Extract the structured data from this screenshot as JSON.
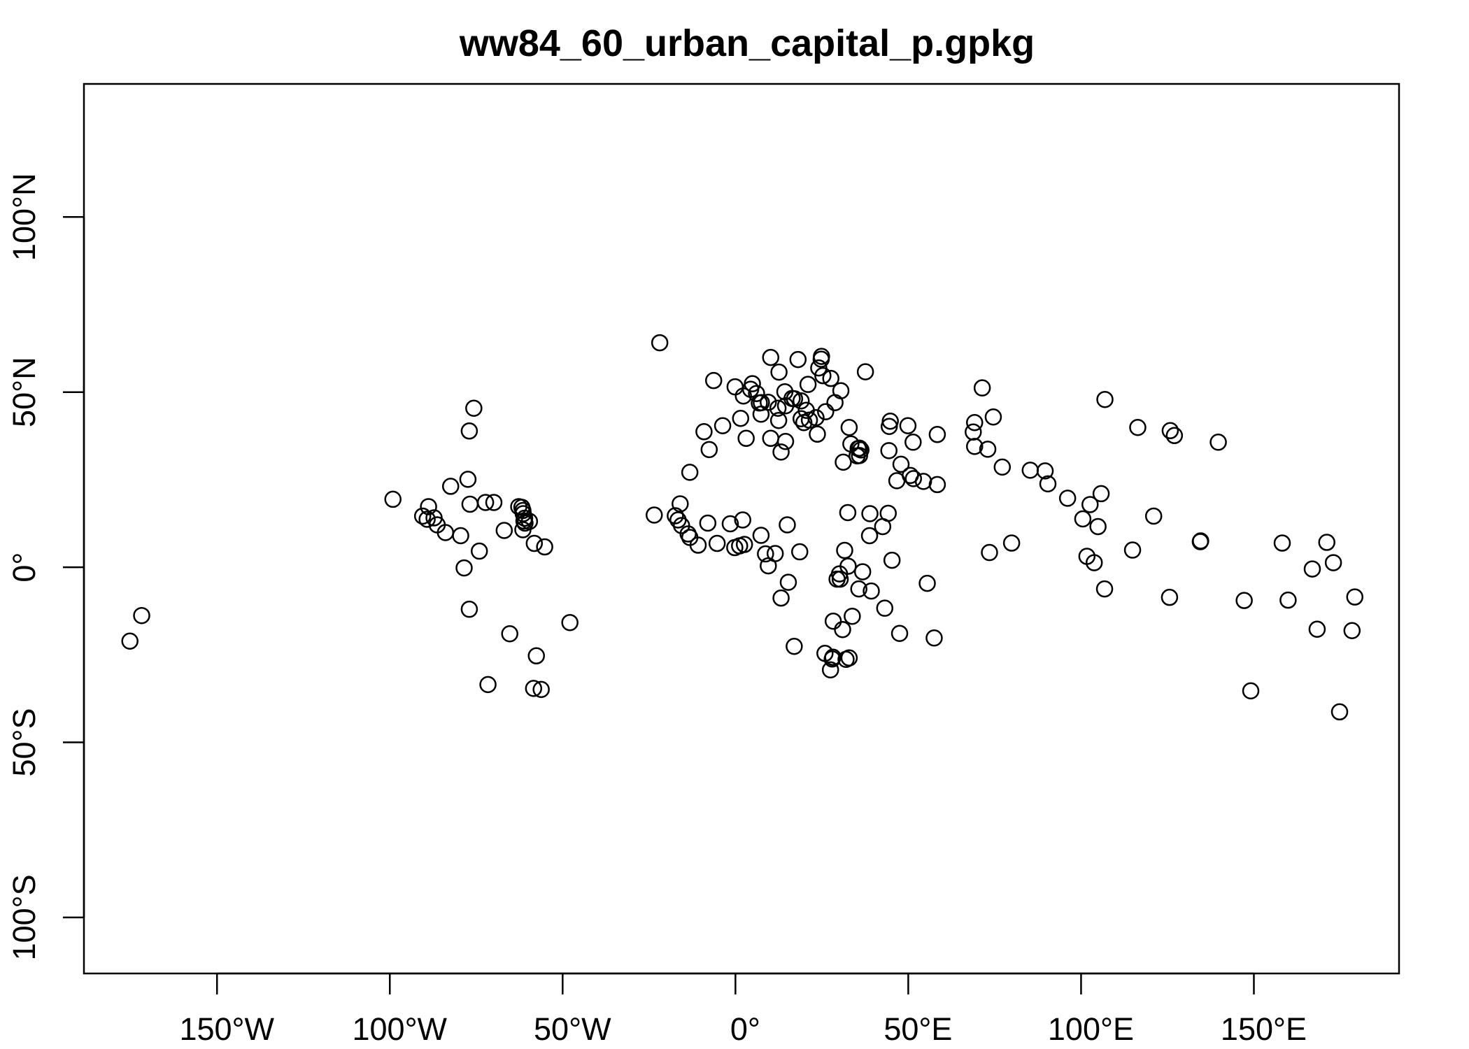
{
  "chart_data": {
    "type": "scatter",
    "title": "ww84_60_urban_capital_p.gpkg",
    "xlabel": "",
    "ylabel": "",
    "xlim": [
      -188.5,
      192
    ],
    "ylim": [
      -116,
      138
    ],
    "grid": false,
    "marker": "open-circle",
    "color": "#000000",
    "x_ticks": [
      {
        "value": -150,
        "label": "150°W"
      },
      {
        "value": -100,
        "label": "100°W"
      },
      {
        "value": -50,
        "label": "50°W"
      },
      {
        "value": 0,
        "label": "0°"
      },
      {
        "value": 50,
        "label": "50°E"
      },
      {
        "value": 100,
        "label": "100°E"
      },
      {
        "value": 150,
        "label": "150°E"
      }
    ],
    "y_ticks": [
      {
        "value": 100,
        "label": "100°N"
      },
      {
        "value": 50,
        "label": "50°N"
      },
      {
        "value": 0,
        "label": "0°"
      },
      {
        "value": -50,
        "label": "50°S"
      },
      {
        "value": -100,
        "label": "100°S"
      }
    ],
    "points": [
      [
        -175.2,
        -21.1
      ],
      [
        -171.8,
        -13.8
      ],
      [
        -99.1,
        19.4
      ],
      [
        -90.5,
        14.6
      ],
      [
        -89.2,
        13.7
      ],
      [
        -88.8,
        17.3
      ],
      [
        -87.2,
        14.1
      ],
      [
        -86.3,
        12.1
      ],
      [
        -83.9,
        9.9
      ],
      [
        -82.4,
        23.1
      ],
      [
        -79.5,
        9.0
      ],
      [
        -78.5,
        -0.2
      ],
      [
        -77.4,
        25.1
      ],
      [
        -77.0,
        38.9
      ],
      [
        -77.0,
        -12.0
      ],
      [
        -76.8,
        18.0
      ],
      [
        -75.7,
        45.4
      ],
      [
        -74.1,
        4.6
      ],
      [
        -72.3,
        18.5
      ],
      [
        -71.6,
        -33.5
      ],
      [
        -69.9,
        18.5
      ],
      [
        -66.9,
        10.5
      ],
      [
        -65.3,
        -19.0
      ],
      [
        -62.7,
        17.3
      ],
      [
        -61.8,
        17.1
      ],
      [
        -61.5,
        16.2
      ],
      [
        -61.4,
        15.3
      ],
      [
        -61.2,
        13.2
      ],
      [
        -61.5,
        10.7
      ],
      [
        -61.0,
        14.0
      ],
      [
        -60.9,
        12.6
      ],
      [
        -59.6,
        13.1
      ],
      [
        -58.2,
        6.8
      ],
      [
        -57.6,
        -25.3
      ],
      [
        -58.4,
        -34.6
      ],
      [
        -56.2,
        -34.9
      ],
      [
        -55.2,
        5.8
      ],
      [
        -47.9,
        -15.8
      ],
      [
        -21.9,
        64.1
      ],
      [
        -23.5,
        14.9
      ],
      [
        -17.4,
        14.7
      ],
      [
        -16.6,
        13.5
      ],
      [
        -16.0,
        18.1
      ],
      [
        -15.6,
        11.9
      ],
      [
        -13.7,
        9.5
      ],
      [
        -13.2,
        27.1
      ],
      [
        -13.2,
        8.5
      ],
      [
        -10.8,
        6.3
      ],
      [
        -9.1,
        38.7
      ],
      [
        -8.0,
        12.6
      ],
      [
        -7.6,
        33.6
      ],
      [
        -6.3,
        53.3
      ],
      [
        -5.3,
        6.8
      ],
      [
        -3.7,
        40.4
      ],
      [
        -1.5,
        12.4
      ],
      [
        -0.1,
        51.5
      ],
      [
        -0.2,
        5.6
      ],
      [
        1.2,
        6.1
      ],
      [
        1.5,
        42.5
      ],
      [
        2.1,
        13.5
      ],
      [
        2.3,
        48.9
      ],
      [
        2.6,
        6.5
      ],
      [
        3.1,
        36.8
      ],
      [
        4.4,
        50.8
      ],
      [
        4.9,
        52.4
      ],
      [
        6.1,
        49.6
      ],
      [
        6.9,
        46.9
      ],
      [
        7.4,
        43.7
      ],
      [
        7.4,
        9.1
      ],
      [
        7.5,
        47.0
      ],
      [
        8.7,
        3.8
      ],
      [
        9.5,
        0.4
      ],
      [
        9.5,
        47.1
      ],
      [
        10.2,
        59.9
      ],
      [
        10.2,
        36.8
      ],
      [
        11.5,
        3.9
      ],
      [
        12.3,
        45.4
      ],
      [
        12.5,
        41.9
      ],
      [
        12.6,
        55.7
      ],
      [
        13.2,
        32.9
      ],
      [
        13.2,
        -8.8
      ],
      [
        14.3,
        50.1
      ],
      [
        14.5,
        46.1
      ],
      [
        15.0,
        12.1
      ],
      [
        14.5,
        35.9
      ],
      [
        15.3,
        -4.3
      ],
      [
        16.4,
        48.2
      ],
      [
        17.1,
        48.1
      ],
      [
        17.0,
        -22.6
      ],
      [
        18.1,
        59.3
      ],
      [
        18.6,
        4.4
      ],
      [
        19.0,
        47.5
      ],
      [
        19.0,
        42.4
      ],
      [
        19.8,
        41.3
      ],
      [
        20.5,
        44.8
      ],
      [
        21.0,
        52.2
      ],
      [
        21.4,
        42.0
      ],
      [
        23.3,
        42.7
      ],
      [
        23.7,
        38.0
      ],
      [
        24.1,
        56.9
      ],
      [
        24.8,
        59.4
      ],
      [
        24.9,
        60.2
      ],
      [
        25.3,
        54.7
      ],
      [
        25.9,
        -24.6
      ],
      [
        26.1,
        44.4
      ],
      [
        27.5,
        -29.3
      ],
      [
        27.6,
        53.9
      ],
      [
        28.0,
        -26.2
      ],
      [
        28.2,
        -25.7
      ],
      [
        28.3,
        -15.4
      ],
      [
        28.8,
        47.0
      ],
      [
        29.4,
        -3.4
      ],
      [
        30.1,
        -1.9
      ],
      [
        30.3,
        -3.4
      ],
      [
        30.5,
        50.4
      ],
      [
        31.0,
        -17.8
      ],
      [
        31.2,
        30.0
      ],
      [
        31.6,
        4.8
      ],
      [
        32.0,
        -26.3
      ],
      [
        32.5,
        15.6
      ],
      [
        32.6,
        0.3
      ],
      [
        32.9,
        -25.9
      ],
      [
        32.9,
        39.9
      ],
      [
        33.4,
        35.2
      ],
      [
        33.8,
        -14.0
      ],
      [
        35.2,
        31.8
      ],
      [
        35.5,
        33.9
      ],
      [
        35.7,
        -6.2
      ],
      [
        35.9,
        31.9
      ],
      [
        35.9,
        34.0
      ],
      [
        36.3,
        33.5
      ],
      [
        36.8,
        -1.3
      ],
      [
        37.6,
        55.8
      ],
      [
        38.8,
        9.0
      ],
      [
        38.9,
        15.3
      ],
      [
        39.3,
        -6.8
      ],
      [
        42.6,
        11.6
      ],
      [
        43.2,
        -11.7
      ],
      [
        44.4,
        33.3
      ],
      [
        44.5,
        40.2
      ],
      [
        44.8,
        41.7
      ],
      [
        45.3,
        2.0
      ],
      [
        44.2,
        15.4
      ],
      [
        46.7,
        24.7
      ],
      [
        47.5,
        -18.9
      ],
      [
        47.9,
        29.4
      ],
      [
        49.9,
        40.4
      ],
      [
        50.6,
        26.2
      ],
      [
        51.4,
        35.7
      ],
      [
        51.5,
        25.3
      ],
      [
        54.4,
        24.5
      ],
      [
        55.5,
        -4.6
      ],
      [
        57.5,
        -20.2
      ],
      [
        58.4,
        23.6
      ],
      [
        58.4,
        37.9
      ],
      [
        69.2,
        34.5
      ],
      [
        69.2,
        41.3
      ],
      [
        68.8,
        38.6
      ],
      [
        71.4,
        51.2
      ],
      [
        73.0,
        33.7
      ],
      [
        73.5,
        4.2
      ],
      [
        74.6,
        42.9
      ],
      [
        77.2,
        28.6
      ],
      [
        79.9,
        6.9
      ],
      [
        85.3,
        27.7
      ],
      [
        89.6,
        27.5
      ],
      [
        90.4,
        23.8
      ],
      [
        96.1,
        19.7
      ],
      [
        100.5,
        13.8
      ],
      [
        101.7,
        3.1
      ],
      [
        102.6,
        17.9
      ],
      [
        103.8,
        1.3
      ],
      [
        104.9,
        11.6
      ],
      [
        105.8,
        21.0
      ],
      [
        106.8,
        -6.2
      ],
      [
        106.9,
        47.9
      ],
      [
        114.9,
        4.9
      ],
      [
        116.4,
        39.9
      ],
      [
        121.0,
        14.6
      ],
      [
        125.6,
        -8.6
      ],
      [
        125.8,
        39.0
      ],
      [
        127.0,
        37.6
      ],
      [
        134.6,
        7.5
      ],
      [
        134.5,
        7.3
      ],
      [
        139.7,
        35.7
      ],
      [
        147.2,
        -9.5
      ],
      [
        149.1,
        -35.3
      ],
      [
        158.2,
        6.9
      ],
      [
        159.9,
        -9.4
      ],
      [
        166.9,
        -0.5
      ],
      [
        168.3,
        -17.7
      ],
      [
        171.1,
        7.1
      ],
      [
        173.0,
        1.3
      ],
      [
        174.8,
        -41.3
      ],
      [
        178.4,
        -18.1
      ],
      [
        179.2,
        -8.5
      ]
    ]
  }
}
